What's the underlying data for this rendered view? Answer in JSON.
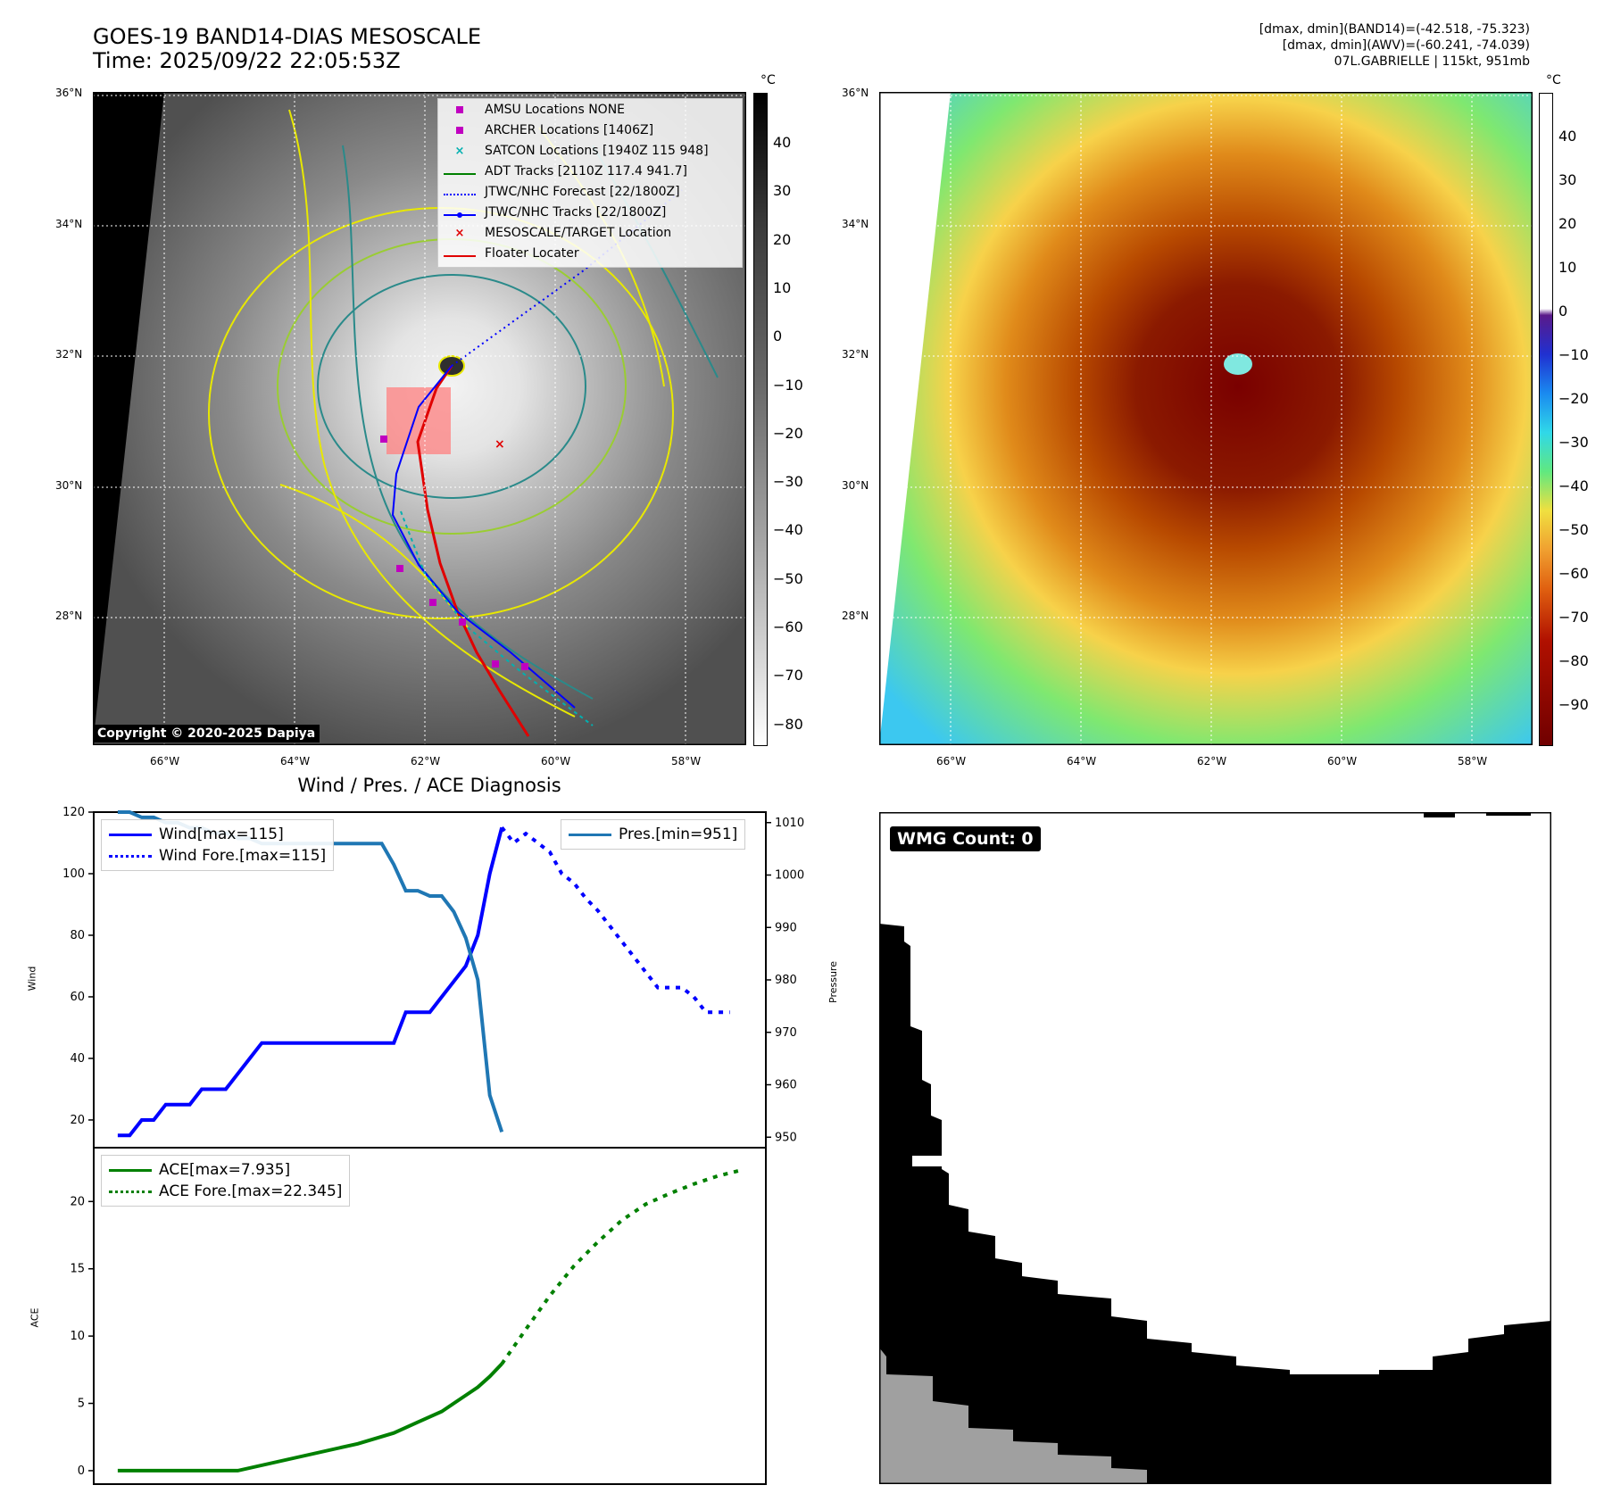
{
  "header": {
    "title_line1": "GOES-19 BAND14-DIAS MESOSCALE",
    "title_line2": "Time: 2025/09/22 22:05:53Z",
    "info_line1": "[dmax, dmin](BAND14)=(-42.518, -75.323)",
    "info_line2": "[dmax, dmin](AWV)=(-60.241, -74.039)",
    "info_line3": "07L.GABRIELLE | 115kt, 951mb"
  },
  "maps": {
    "lat_labels": [
      "36°N",
      "34°N",
      "32°N",
      "30°N",
      "28°N"
    ],
    "lon_labels": [
      "66°W",
      "64°W",
      "62°W",
      "60°W",
      "58°W"
    ],
    "lat_values": [
      36,
      34,
      32,
      30,
      28
    ],
    "lon_values": [
      -66,
      -64,
      -62,
      -60,
      -58
    ],
    "lat_range": [
      26.0,
      36.0
    ],
    "lon_range": [
      -67.0,
      -57.0
    ],
    "copyright": "Copyright © 2020-2025 Dapiya",
    "colorbar_unit": "°C",
    "left_colorbar_ticks": [
      "40",
      "30",
      "20",
      "10",
      "0",
      "−10",
      "−20",
      "−30",
      "−40",
      "−50",
      "−60",
      "−70",
      "−80"
    ],
    "right_colorbar_ticks": [
      "40",
      "30",
      "20",
      "10",
      "0",
      "−10",
      "−20",
      "−30",
      "−40",
      "−50",
      "−60",
      "−70",
      "−80",
      "−90"
    ],
    "legend": [
      {
        "label": "AMSU Locations NONE",
        "marker": "square",
        "color": "#c000c0"
      },
      {
        "label": "ARCHER Locations [1406Z]",
        "marker": "square",
        "color": "#c000c0"
      },
      {
        "label": "SATCON Locations [1940Z 115 948]",
        "marker": "x",
        "color": "#00b0b0"
      },
      {
        "label": "ADT Tracks [2110Z 117.4 941.7]",
        "marker": "line",
        "color": "#008000"
      },
      {
        "label": "JTWC/NHC Forecast [22/1800Z]",
        "marker": "dotted",
        "color": "#0000ff"
      },
      {
        "label": "JTWC/NHC Tracks [22/1800Z]",
        "marker": "line-dot",
        "color": "#0000ff"
      },
      {
        "label": "MESOSCALE/TARGET Location",
        "marker": "x",
        "color": "#e00000"
      },
      {
        "label": "Floater Locater",
        "marker": "line",
        "color": "#e00000"
      }
    ],
    "storm_center": {
      "lat": 31.9,
      "lon": -61.55
    }
  },
  "diag": {
    "title": "Wind / Pres. / ACE Diagnosis",
    "wind_ylabel": "Wind",
    "pres_ylabel": "Pressure",
    "ace_ylabel": "ACE",
    "wind_legend": [
      "Wind[max=115]",
      "Wind Fore.[max=115]"
    ],
    "pres_legend": [
      "Pres.[min=951]"
    ],
    "ace_legend": [
      "ACE[max=7.935]",
      "ACE Fore.[max=22.345]"
    ]
  },
  "wmg": {
    "label": "WMG Count: 0"
  },
  "chart_data": [
    {
      "type": "line",
      "title": "Wind / Pres. / ACE Diagnosis",
      "ylabel": "Wind",
      "ylim": [
        11,
        120
      ],
      "yticks": [
        20,
        40,
        60,
        80,
        100,
        120
      ],
      "xlim": [
        -2,
        54
      ],
      "series": [
        {
          "name": "Wind[max=115]",
          "color": "#0000ff",
          "style": "solid",
          "x": [
            0,
            1,
            2,
            3,
            4,
            5,
            6,
            7,
            8,
            9,
            10,
            11,
            12,
            13,
            14,
            15,
            16,
            17,
            18,
            19,
            20,
            21,
            22,
            23,
            24,
            25,
            26,
            27,
            28,
            29,
            30,
            31,
            32
          ],
          "values": [
            15,
            15,
            20,
            20,
            25,
            25,
            25,
            30,
            30,
            30,
            35,
            40,
            45,
            45,
            45,
            45,
            45,
            45,
            45,
            45,
            45,
            45,
            45,
            45,
            55,
            55,
            55,
            60,
            65,
            70,
            80,
            100,
            115
          ]
        },
        {
          "name": "Wind Fore.[max=115]",
          "color": "#0000ff",
          "style": "dotted",
          "x": [
            32,
            33,
            34,
            35,
            36,
            37,
            38,
            39,
            40,
            41,
            42,
            43,
            44,
            45,
            46,
            47,
            48,
            49,
            50,
            51
          ],
          "values": [
            115,
            110,
            113,
            110,
            107,
            100,
            97,
            92,
            88,
            83,
            78,
            73,
            68,
            63,
            63,
            63,
            60,
            55,
            55,
            55
          ]
        }
      ]
    },
    {
      "type": "line",
      "ylabel": "Pressure",
      "ylim": [
        948,
        1012
      ],
      "yticks": [
        950,
        960,
        970,
        980,
        990,
        1000,
        1010
      ],
      "xlim": [
        -2,
        54
      ],
      "series": [
        {
          "name": "Pres.[min=951]",
          "color": "#1f77b4",
          "style": "solid",
          "x": [
            0,
            1,
            2,
            3,
            4,
            5,
            6,
            7,
            8,
            9,
            10,
            11,
            12,
            13,
            14,
            15,
            16,
            17,
            18,
            19,
            20,
            21,
            22,
            23,
            24,
            25,
            26,
            27,
            28,
            29,
            30,
            31,
            32
          ],
          "values": [
            1012,
            1012,
            1011,
            1011,
            1010,
            1010,
            1009,
            1009,
            1008,
            1008,
            1007,
            1007,
            1006,
            1006,
            1006,
            1006,
            1006,
            1006,
            1006,
            1006,
            1006,
            1006,
            1006,
            1002,
            997,
            997,
            996,
            996,
            993,
            988,
            980,
            958,
            951
          ]
        }
      ]
    },
    {
      "type": "line",
      "ylabel": "ACE",
      "ylim": [
        -1,
        24
      ],
      "yticks": [
        0,
        5,
        10,
        15,
        20
      ],
      "xlim": [
        -2,
        54
      ],
      "series": [
        {
          "name": "ACE[max=7.935]",
          "color": "#008000",
          "style": "solid",
          "x": [
            0,
            10,
            20,
            23,
            25,
            27,
            28,
            29,
            30,
            31,
            32
          ],
          "values": [
            0,
            0,
            2.0,
            2.8,
            3.6,
            4.4,
            5.0,
            5.6,
            6.2,
            7.0,
            7.935
          ]
        },
        {
          "name": "ACE Fore.[max=22.345]",
          "color": "#008000",
          "style": "dotted",
          "x": [
            32,
            34,
            36,
            38,
            40,
            42,
            44,
            46,
            48,
            50,
            52
          ],
          "values": [
            7.935,
            10.5,
            13.0,
            15.2,
            17.0,
            18.6,
            19.8,
            20.6,
            21.3,
            21.9,
            22.345
          ]
        }
      ]
    }
  ]
}
